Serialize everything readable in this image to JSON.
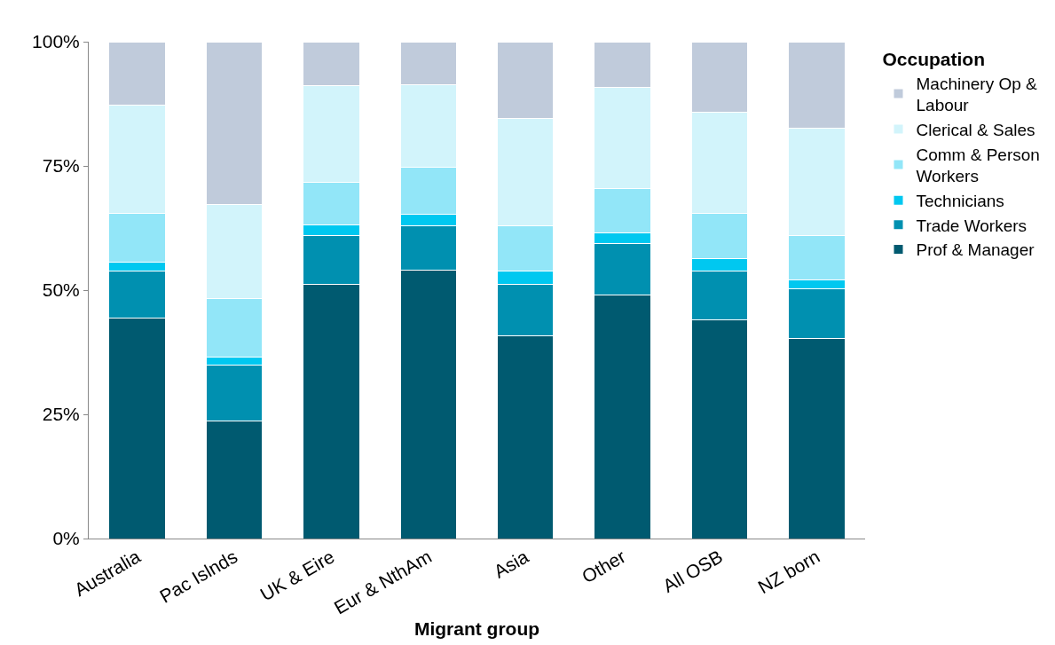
{
  "chart_data": {
    "type": "bar",
    "stacked": true,
    "xlabel": "Migrant group",
    "legend_title": "Occupation",
    "legend": "right",
    "categories": [
      "Australia",
      "Pac Islnds",
      "UK & Eire",
      "Eur & NthAm",
      "Asia",
      "Other",
      "All OSB",
      "NZ born"
    ],
    "ylim": [
      0,
      100
    ],
    "yticks": [
      {
        "value": 0,
        "label": "0%"
      },
      {
        "value": 25,
        "label": "25%"
      },
      {
        "value": 50,
        "label": "50%"
      },
      {
        "value": 75,
        "label": "75%"
      },
      {
        "value": 100,
        "label": "100%"
      }
    ],
    "series": [
      {
        "name": "Prof & Manager",
        "color": "#005a70",
        "values": [
          44.4,
          23.6,
          51.1,
          54.1,
          40.8,
          49.1,
          44.0,
          40.3
        ]
      },
      {
        "name": "Trade Workers",
        "color": "#0090b0",
        "values": [
          9.5,
          11.4,
          9.8,
          8.8,
          10.3,
          10.3,
          9.9,
          9.9
        ]
      },
      {
        "name": "Technicians",
        "color": "#00c8f0",
        "values": [
          1.7,
          1.5,
          2.2,
          2.3,
          2.8,
          2.2,
          2.5,
          1.9
        ]
      },
      {
        "name": "Comm & Person Workers",
        "color": "#92e6f8",
        "values": [
          9.8,
          11.8,
          8.6,
          9.5,
          9.0,
          8.8,
          9.1,
          8.9
        ]
      },
      {
        "name": "Clerical & Sales",
        "color": "#d2f4fb",
        "values": [
          21.9,
          18.9,
          19.5,
          16.7,
          21.7,
          20.4,
          20.3,
          21.6
        ]
      },
      {
        "name": "Machinery Op & Labour",
        "color": "#c0cbdb",
        "values": [
          12.7,
          32.8,
          8.8,
          8.6,
          15.4,
          9.2,
          14.2,
          17.4
        ]
      }
    ]
  }
}
